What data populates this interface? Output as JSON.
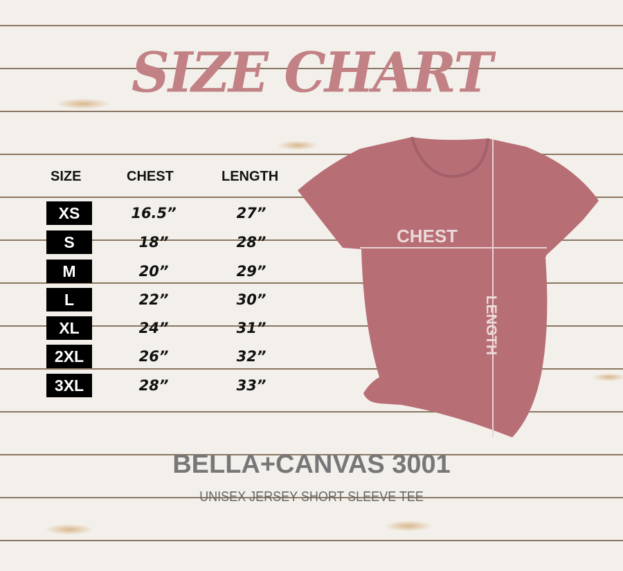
{
  "title": "SIZE CHART",
  "table": {
    "headers": [
      "SIZE",
      "CHEST",
      "LENGTH"
    ],
    "rows": [
      {
        "size": "XS",
        "chest": "16.5”",
        "length": "27”"
      },
      {
        "size": "S",
        "chest": "18”",
        "length": "28”"
      },
      {
        "size": "M",
        "chest": "20”",
        "length": "29”"
      },
      {
        "size": "L",
        "chest": "22”",
        "length": "30”"
      },
      {
        "size": "XL",
        "chest": "24”",
        "length": "31”"
      },
      {
        "size": "2XL",
        "chest": "26”",
        "length": "32”"
      },
      {
        "size": "3XL",
        "chest": "28”",
        "length": "33”"
      }
    ]
  },
  "shirt": {
    "chest_label": "CHEST",
    "length_label": "LENGTH",
    "color": "#b86e75"
  },
  "brand": "BELLA+CANVAS 3001",
  "subtitle": "UNISEX JERSEY SHORT SLEEVE TEE"
}
